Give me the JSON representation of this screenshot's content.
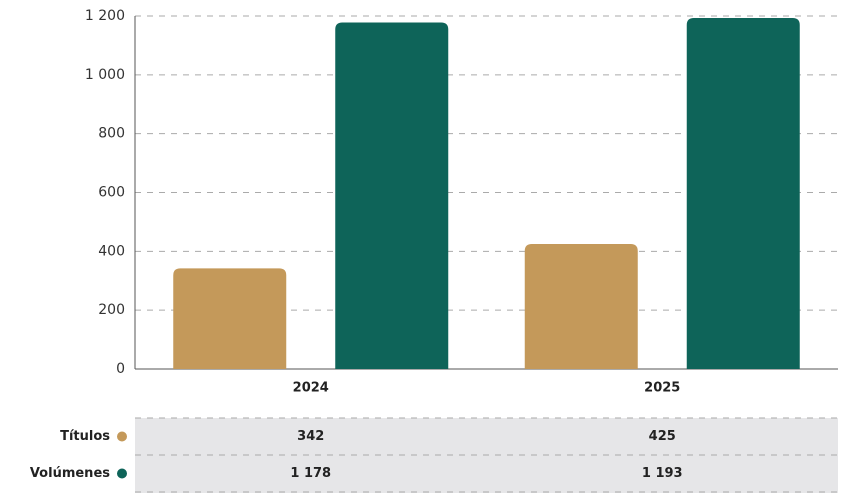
{
  "chart_data": {
    "type": "bar",
    "categories": [
      "2024",
      "2025"
    ],
    "series": [
      {
        "name": "Títulos",
        "color": "#c4995a",
        "values": [
          342,
          425
        ]
      },
      {
        "name": "Volúmenes",
        "color": "#0e6459",
        "values": [
          1178,
          1193
        ],
        "value_labels": [
          "1 178",
          "1 193"
        ]
      }
    ],
    "ylim": [
      0,
      1200
    ],
    "yticks": [
      0,
      200,
      400,
      600,
      800,
      {
        "value": 1000,
        "label": "1 000"
      },
      {
        "value": 1200,
        "label": "1 200"
      }
    ],
    "grid": true
  }
}
